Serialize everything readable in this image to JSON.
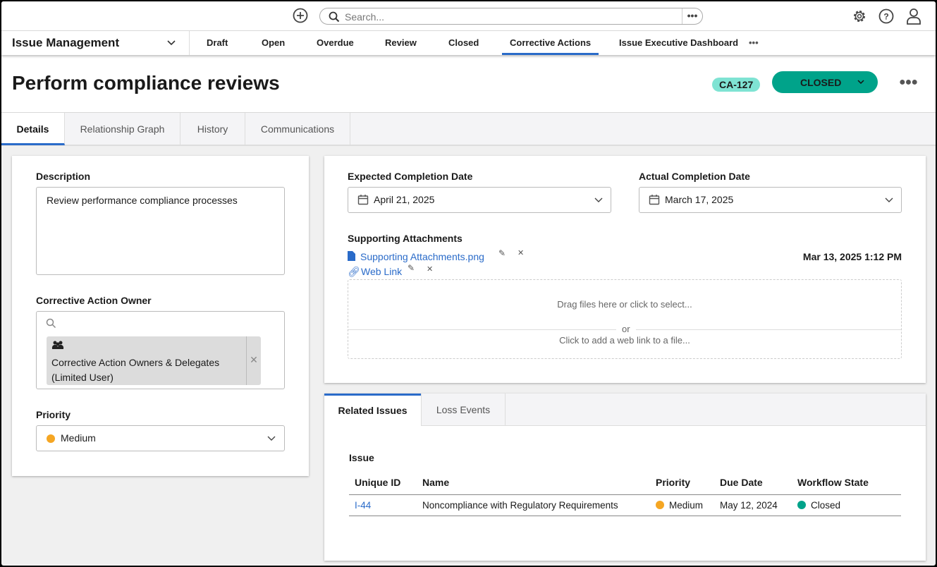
{
  "topbar": {
    "search_placeholder": "Search..."
  },
  "nav": {
    "app": "Issue Management",
    "items": [
      "Draft",
      "Open",
      "Overdue",
      "Review",
      "Closed",
      "Corrective Actions",
      "Issue Executive Dashboard"
    ],
    "active": "Corrective Actions"
  },
  "header": {
    "title": "Perform compliance reviews",
    "id_badge": "CA-127",
    "state": "CLOSED",
    "state_color": "#00a38a",
    "badge_color": "#7fe3d3"
  },
  "tabs": [
    "Details",
    "Relationship Graph",
    "History",
    "Communications"
  ],
  "left": {
    "description_label": "Description",
    "description_value": "Review performance compliance processes",
    "owner_label": "Corrective Action Owner",
    "owner_tag_line1": "Corrective Action Owners & Delegates",
    "owner_tag_line2": "(Limited User)",
    "priority_label": "Priority",
    "priority_value": "Medium",
    "priority_color": "#f5a623"
  },
  "right": {
    "expected_label": "Expected Completion Date",
    "expected_value": "April 21, 2025",
    "actual_label": "Actual Completion Date",
    "actual_value": "March 17, 2025",
    "attachments_label": "Supporting Attachments",
    "attachment_file": "Supporting Attachments.png",
    "attachment_date": "Mar 13, 2025 1:12 PM",
    "web_link": "Web Link",
    "drop_text": "Drag files here or click to select...",
    "or_text": "or",
    "weblink_text": "Click to add a web link to a file..."
  },
  "related": {
    "tabs": [
      "Related Issues",
      "Loss Events"
    ],
    "section": "Issue",
    "columns": [
      "Unique ID",
      "Name",
      "Priority",
      "Due Date",
      "Workflow State"
    ],
    "rows": [
      {
        "id": "I-44",
        "name": "Noncompliance with Regulatory Requirements",
        "priority": "Medium",
        "priority_color": "#f5a623",
        "due": "May 12, 2024",
        "state": "Closed",
        "state_color": "#00a38a"
      }
    ]
  }
}
